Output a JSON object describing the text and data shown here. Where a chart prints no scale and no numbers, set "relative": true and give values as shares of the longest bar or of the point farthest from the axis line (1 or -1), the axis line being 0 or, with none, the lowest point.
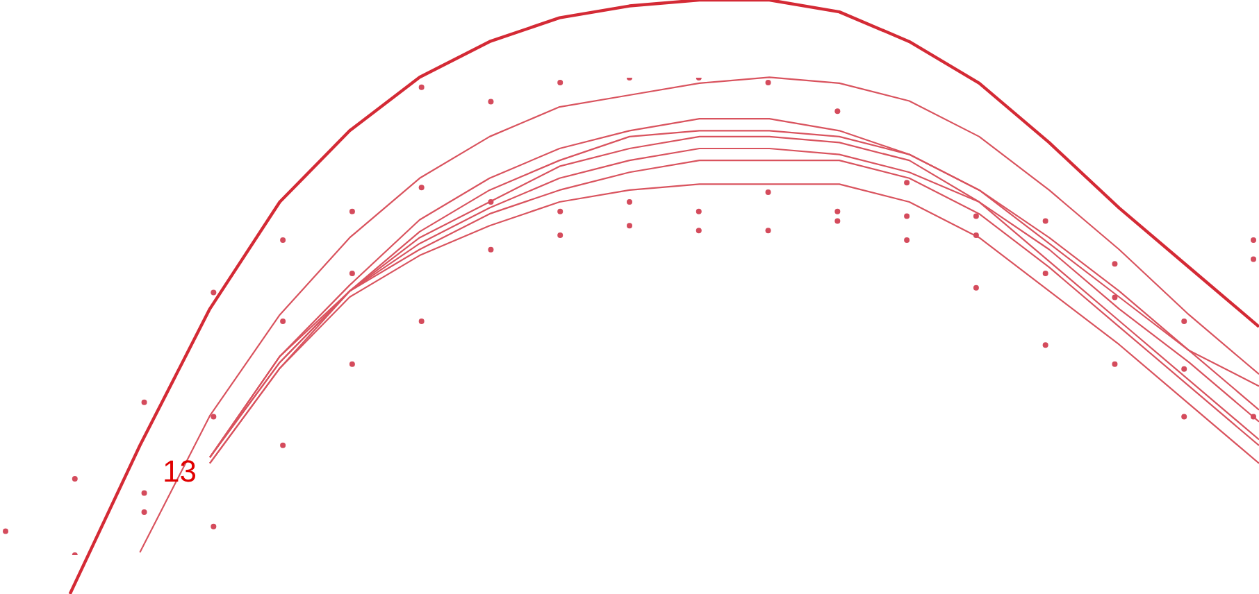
{
  "chart_data": [
    {
      "type": "line",
      "relative": true,
      "legend": false,
      "marker": "none",
      "line_style": "solid",
      "annotations": [
        "13"
      ],
      "categories": [
        null,
        null,
        null,
        null,
        null,
        null,
        null,
        null,
        null,
        null,
        null,
        null,
        null,
        null,
        null,
        null,
        null,
        null,
        null
      ],
      "series": [
        {
          "color": "#d42a35",
          "values": [
            null,
            0,
            0.25,
            0.48,
            0.66,
            0.78,
            0.87,
            0.93,
            0.97,
            0.99,
            1,
            1,
            0.98,
            0.93,
            0.86,
            0.76,
            0.65,
            0.55,
            0.45
          ]
        },
        {
          "color": "#d9535e",
          "values": [
            null,
            null,
            0.07,
            0.3,
            0.47,
            0.6,
            0.7,
            0.77,
            0.82,
            0.84,
            0.86,
            0.87,
            0.86,
            0.83,
            0.77,
            0.68,
            0.58,
            0.47,
            0.37
          ]
        },
        {
          "color": "#d9535e",
          "values": [
            null,
            null,
            null,
            0.23,
            0.4,
            0.52,
            0.63,
            0.7,
            0.75,
            0.78,
            0.8,
            0.8,
            0.78,
            0.74,
            0.68,
            0.59,
            0.5,
            0.41,
            0.35
          ]
        },
        {
          "color": "#d9535e",
          "values": [
            null,
            null,
            null,
            0.23,
            0.4,
            0.51,
            0.61,
            0.68,
            0.73,
            0.77,
            0.78,
            0.78,
            0.77,
            0.74,
            0.68,
            0.6,
            0.51,
            0.41,
            0.31
          ]
        },
        {
          "color": "#d9535e",
          "values": [
            null,
            null,
            null,
            0.23,
            0.39,
            0.51,
            0.6,
            0.66,
            0.72,
            0.75,
            0.77,
            0.77,
            0.76,
            0.73,
            0.66,
            0.58,
            0.48,
            0.39,
            0.29
          ]
        },
        {
          "color": "#d9535e",
          "values": [
            null,
            null,
            null,
            0.23,
            0.39,
            0.51,
            0.59,
            0.65,
            0.7,
            0.73,
            0.75,
            0.75,
            0.74,
            0.71,
            0.66,
            0.56,
            0.46,
            0.36,
            0.26
          ]
        },
        {
          "color": "#d9535e",
          "values": [
            null,
            null,
            null,
            0.22,
            0.38,
            0.51,
            0.58,
            0.64,
            0.68,
            0.71,
            0.73,
            0.73,
            0.73,
            0.7,
            0.64,
            0.55,
            0.45,
            0.35,
            0.25
          ]
        },
        {
          "color": "#d9535e",
          "values": [
            null,
            null,
            null,
            0.22,
            0.38,
            0.5,
            0.57,
            0.62,
            0.66,
            0.68,
            0.69,
            0.69,
            0.69,
            0.66,
            0.6,
            0.51,
            0.42,
            0.32,
            0.22
          ]
        }
      ]
    },
    {
      "type": "scatter",
      "relative": true,
      "legend": false,
      "marker": "circle",
      "categories": [
        null,
        null,
        null,
        null,
        null,
        null,
        null,
        null,
        null,
        null,
        null,
        null,
        null,
        null,
        null,
        null,
        null,
        null,
        null
      ],
      "series": [
        {
          "color": "#d44b5c",
          "values": [
            0.05,
            0.16,
            0.32,
            0.55,
            0.66,
            0.72,
            0.77,
            0.74,
            0.72,
            0.74,
            0.72,
            0.76,
            0.72,
            0.71,
            0.67,
            0.59,
            0.54,
            0.39,
            0.66
          ]
        },
        {
          "color": "#d44b5c",
          "values": [
            null,
            0,
            0.09,
            0.29,
            0.49,
            0.59,
            0.49,
            0.64,
            0.67,
            0.69,
            0.68,
            0.68,
            0.7,
            0.66,
            0.56,
            0.44,
            0.4,
            0.29,
            0.29
          ]
        },
        {
          "color": "#d44b5c",
          "values": [
            null,
            null,
            0.13,
            0.06,
            0.23,
            0.4,
            0.98,
            0.95,
            0.99,
            1,
            1,
            0.99,
            0.93,
            0.78,
            0.71,
            0.7,
            0.61,
            0.49,
            0.62
          ]
        }
      ]
    }
  ]
}
